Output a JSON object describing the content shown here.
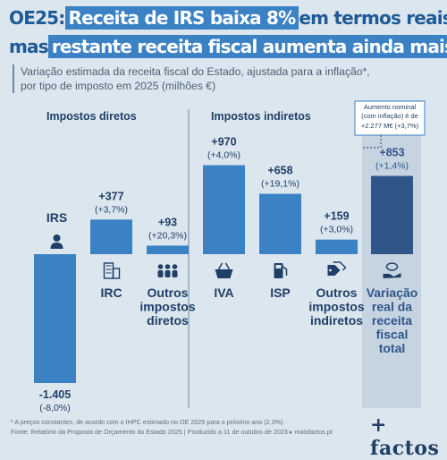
{
  "headline": {
    "line1_prefix": "OE25:",
    "line1_highlight": "Receita de IRS baixa 8%",
    "line1_suffix": "em termos reais",
    "line2_prefix": "mas",
    "line2_highlight": "restante receita fiscal aumenta ainda mais"
  },
  "subtitle": {
    "line1": "Variação estimada da receita fiscal do Estado, ajustada para a inflação*,",
    "line2": "por tipo de imposto em 2025 (milhões €)"
  },
  "colors": {
    "bar": "#3b82c4",
    "total_bar": "#2f5589",
    "total_panel": "#c6d4e1",
    "text_dark": "#1f3f66",
    "headline_box": "#3b82c4",
    "callout_border": "#3b82c4"
  },
  "chart_data": {
    "type": "bar",
    "sections": [
      "Impostos diretos",
      "Impostos indiretos"
    ],
    "categories": [
      "IRS",
      "IRC",
      "Outros impostos diretos",
      "IVA",
      "ISP",
      "Outros impostos indiretos",
      "Variação real da receita fiscal total"
    ],
    "category_lines": [
      [
        "IRS"
      ],
      [
        "IRC"
      ],
      [
        "Outros",
        "impostos",
        "diretos"
      ],
      [
        "IVA"
      ],
      [
        "ISP"
      ],
      [
        "Outros",
        "impostos",
        "indiretos"
      ],
      [
        "Variação",
        "real da",
        "receita",
        "fiscal",
        "total"
      ]
    ],
    "values": [
      -1405,
      377,
      93,
      970,
      658,
      159,
      853
    ],
    "value_labels": [
      "-1.405",
      "+377",
      "+93",
      "+970",
      "+658",
      "+159",
      "+853"
    ],
    "pct_labels": [
      "(-8,0%)",
      "(+3,7%)",
      "(+20,3%)",
      "(+4,0%)",
      "(+19,1%)",
      "(+3,0%)",
      "(+1,4%)"
    ],
    "icons": [
      "person-icon",
      "building-icon",
      "people-icon",
      "shopping-basket-icon",
      "fuel-pump-icon",
      "tags-icon",
      "money-hand-icon"
    ],
    "callout": {
      "line1": "Aumento nominal",
      "line2": "(com inflação) é de",
      "line3": "+2.277 M€ (+3,7%)"
    }
  },
  "footnote": {
    "line1": "* A preços constantes, de acordo com o IHPC estimado no OE 2025 para o próximo ano (2,3%).",
    "line2": "Fonte: Relatório da Proposta de Orçamento do Estado 2025 | Produzido a 11 de outubro de 2023 ▸ maisfactos.pt"
  },
  "brand": {
    "logo": "+ factos"
  }
}
